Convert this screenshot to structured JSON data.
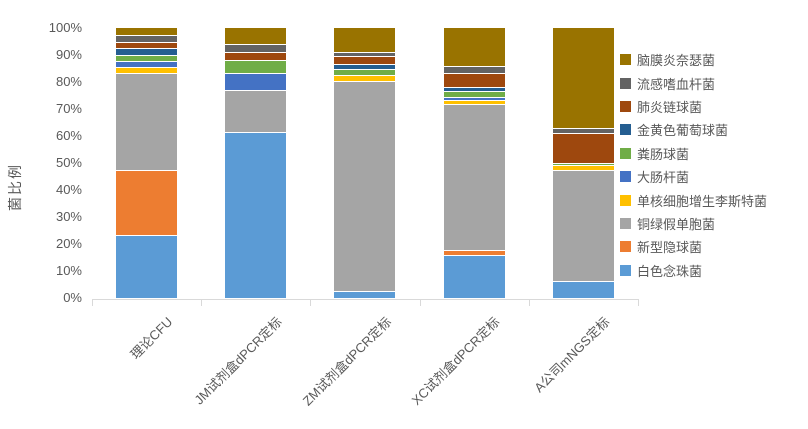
{
  "chart_data": {
    "type": "bar",
    "variant": "stacked-100-percent",
    "title": "",
    "xlabel": "",
    "ylabel": "菌比例",
    "ylim": [
      0,
      100
    ],
    "grid": false,
    "legend_position": "right",
    "y_ticks": [
      "0%",
      "10%",
      "20%",
      "30%",
      "40%",
      "50%",
      "60%",
      "70%",
      "80%",
      "90%",
      "100%"
    ],
    "categories": [
      "理论CFU",
      "JM试剂盒dPCR定标",
      "ZM试剂盒dPCR定标",
      "XC试剂盒dPCR定标",
      "A公司mNGS定标"
    ],
    "series": [
      {
        "name": "白色念珠菌",
        "color": "#5B9BD5",
        "values": [
          23.5,
          61.5,
          2.7,
          16.0,
          6.2
        ]
      },
      {
        "name": "新型隐球菌",
        "color": "#ED7D31",
        "values": [
          23.8,
          0,
          0,
          1.8,
          0
        ]
      },
      {
        "name": "铜绿假单胞菌",
        "color": "#A5A5A5",
        "values": [
          36.2,
          15.5,
          77.8,
          54.0,
          41.4
        ]
      },
      {
        "name": "单核细胞增生李斯特菌",
        "color": "#FFC000",
        "values": [
          2.2,
          0,
          2.0,
          1.4,
          1.6
        ]
      },
      {
        "name": "大肠杆菌",
        "color": "#4472C4",
        "values": [
          2.2,
          6.5,
          0,
          1.3,
          0
        ]
      },
      {
        "name": "粪肠球菌",
        "color": "#70AD47",
        "values": [
          2.2,
          4.5,
          2.5,
          2.3,
          1.0
        ]
      },
      {
        "name": "金黄色葡萄球菌",
        "color": "#255E91",
        "values": [
          2.4,
          0,
          1.7,
          1.4,
          0
        ]
      },
      {
        "name": "肺炎链球菌",
        "color": "#9E480E",
        "values": [
          2.2,
          3.0,
          2.8,
          5.0,
          10.8
        ]
      },
      {
        "name": "流感嗜血杆菌",
        "color": "#636363",
        "values": [
          2.6,
          3.0,
          1.5,
          2.8,
          2.0
        ]
      },
      {
        "name": "脑膜炎奈瑟菌",
        "color": "#997300",
        "values": [
          2.7,
          6.0,
          9.0,
          14.0,
          37.0
        ]
      }
    ],
    "legend_top_to_bottom": [
      "脑膜炎奈瑟菌",
      "流感嗜血杆菌",
      "肺炎链球菌",
      "金黄色葡萄球菌",
      "粪肠球菌",
      "大肠杆菌",
      "单核细胞增生李斯特菌",
      "铜绿假单胞菌",
      "新型隐球菌",
      "白色念珠菌"
    ]
  },
  "colors": {
    "background": "#FFFFFF",
    "axis_text": "#595959",
    "axis_line": "#D9D9D9",
    "segment_separator": "#FFFFFF"
  }
}
